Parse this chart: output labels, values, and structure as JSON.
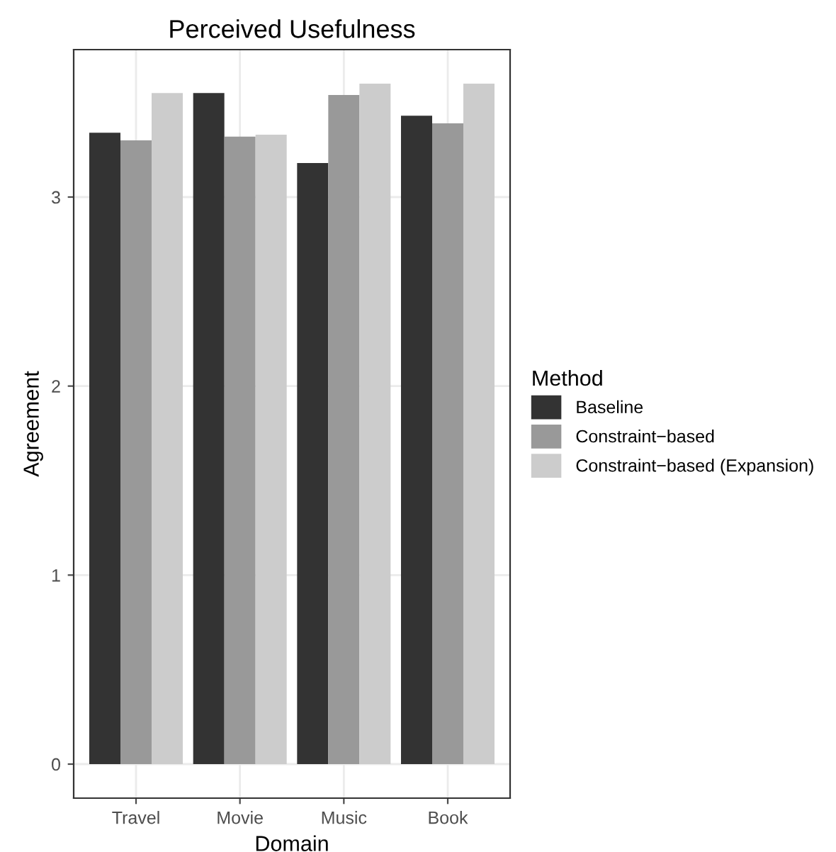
{
  "chart_data": {
    "type": "bar",
    "title": "Perceived Usefulness",
    "xlabel": "Domain",
    "ylabel": "Agreement",
    "legend_title": "Method",
    "categories": [
      "Travel",
      "Movie",
      "Music",
      "Book"
    ],
    "series": [
      {
        "name": "Baseline",
        "color": "#333333",
        "values": [
          3.34,
          3.55,
          3.18,
          3.43
        ]
      },
      {
        "name": "Constraint−based",
        "color": "#999999",
        "values": [
          3.3,
          3.32,
          3.54,
          3.39
        ]
      },
      {
        "name": "Constraint−based (Expansion)",
        "color": "#cccccc",
        "values": [
          3.55,
          3.33,
          3.6,
          3.6
        ]
      }
    ],
    "ylim": [
      -0.18,
      3.78
    ],
    "yticks": [
      0,
      1,
      2,
      3
    ],
    "grid": true,
    "legend": "right"
  }
}
